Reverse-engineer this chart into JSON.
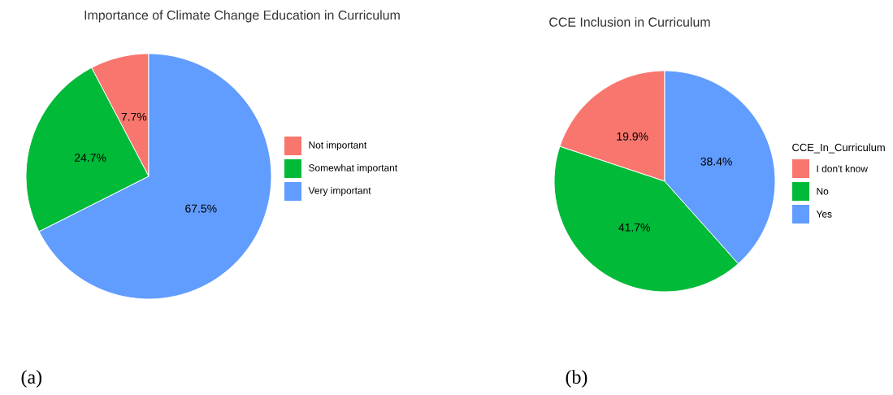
{
  "chart_data": [
    {
      "type": "pie",
      "title": "Importance of Climate Change Education in Curriculum",
      "categories": [
        "Not important",
        "Somewhat important",
        "Very important"
      ],
      "values": [
        7.7,
        24.7,
        67.5
      ],
      "colors": [
        "#f8766d",
        "#00ba38",
        "#619cff"
      ],
      "value_labels": [
        "7.7%",
        "24.7%",
        "67.5%"
      ],
      "legend": "right",
      "annotations": [
        "(a)"
      ]
    },
    {
      "type": "pie",
      "title": "CCE Inclusion in Curriculum",
      "categories": [
        "I don't know",
        "No",
        "Yes"
      ],
      "values": [
        19.9,
        41.7,
        38.4
      ],
      "colors": [
        "#f8766d",
        "#00ba38",
        "#619cff"
      ],
      "value_labels": [
        "19.9%",
        "41.7%",
        "38.4%"
      ],
      "legend": "right",
      "legend_title": "CCE_In_Curriculum",
      "annotations": [
        "(b)"
      ]
    }
  ]
}
